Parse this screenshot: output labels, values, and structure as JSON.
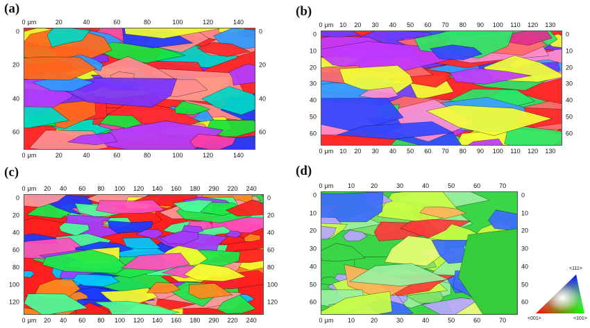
{
  "panels": [
    {
      "label": "(a)",
      "x_unit": "μm",
      "x_ticks": [
        "0",
        "20",
        "40",
        "60",
        "80",
        "100",
        "120",
        "140"
      ],
      "y_ticks": [
        "0",
        "20",
        "40",
        "60"
      ]
    },
    {
      "label": "(b)",
      "x_unit": "μm",
      "x_ticks": [
        "0",
        "10",
        "20",
        "30",
        "40",
        "50",
        "60",
        "70",
        "80",
        "90",
        "100",
        "110",
        "120",
        "130"
      ],
      "y_ticks": [
        "0",
        "10",
        "20",
        "30",
        "40",
        "50",
        "60"
      ]
    },
    {
      "label": "(c)",
      "x_unit": "μm",
      "x_ticks": [
        "0",
        "20",
        "40",
        "60",
        "80",
        "100",
        "120",
        "140",
        "160",
        "180",
        "290",
        "220",
        "240"
      ],
      "y_ticks": [
        "0",
        "20",
        "40",
        "60",
        "80",
        "100",
        "120"
      ]
    },
    {
      "label": "(d)",
      "x_unit": "μm",
      "x_ticks": [
        "0",
        "10",
        "20",
        "30",
        "40",
        "50",
        "60",
        "70"
      ],
      "y_ticks": [
        "0",
        "10",
        "20",
        "30",
        "40",
        "50",
        "60"
      ]
    }
  ],
  "legend": {
    "top": "<111>",
    "left": "<001>",
    "right": "<101>"
  }
}
